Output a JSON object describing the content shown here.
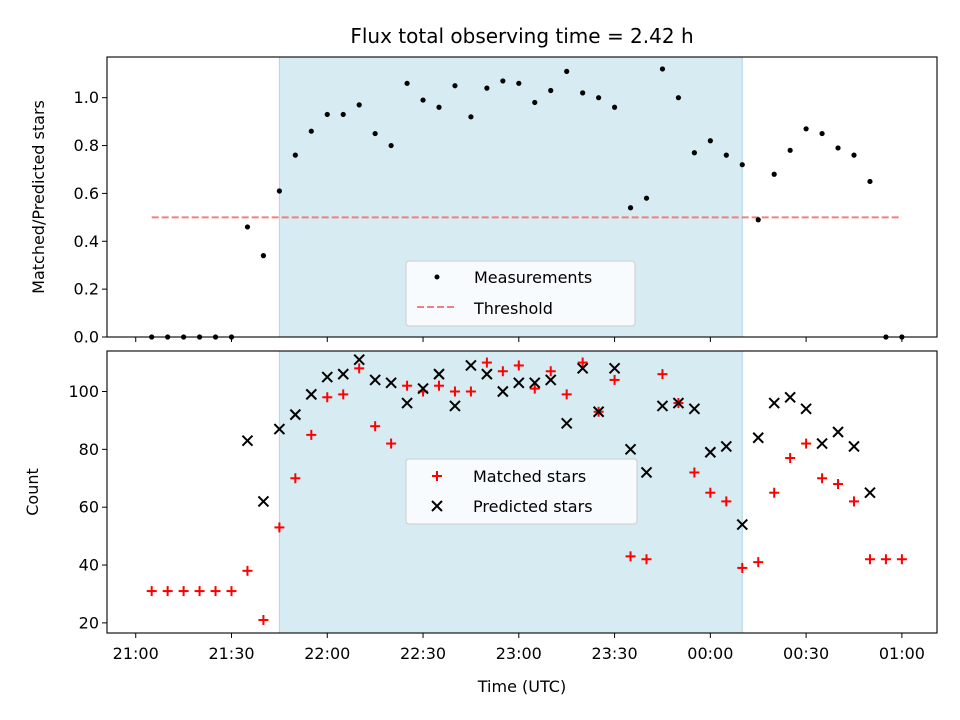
{
  "chart_data": [
    {
      "type": "scatter",
      "title": "Flux total observing time = 2.42 h",
      "xlabel": "",
      "ylabel": "Matched/Predicted stars",
      "xlim": [
        "20:51",
        "01:11"
      ],
      "ylim": [
        0,
        1.17
      ],
      "yticks": [
        0.0,
        0.2,
        0.4,
        0.6,
        0.8,
        1.0
      ],
      "yticklabels": [
        "0.0",
        "0.2",
        "0.4",
        "0.6",
        "0.8",
        "1.0"
      ],
      "shaded_span": {
        "start": "21:45",
        "end": "00:10",
        "color": "#add8e6"
      },
      "legend": {
        "position": "lower center",
        "entries": [
          "Measurements",
          "Threshold"
        ]
      },
      "series": [
        {
          "name": "Measurements",
          "marker": "dot",
          "color": "#000000",
          "points": [
            [
              "21:05",
              0.0
            ],
            [
              "21:10",
              0.0
            ],
            [
              "21:15",
              0.0
            ],
            [
              "21:20",
              0.0
            ],
            [
              "21:25",
              0.0
            ],
            [
              "21:30",
              0.0
            ],
            [
              "21:35",
              0.46
            ],
            [
              "21:40",
              0.34
            ],
            [
              "21:45",
              0.61
            ],
            [
              "21:50",
              0.76
            ],
            [
              "21:55",
              0.86
            ],
            [
              "22:00",
              0.93
            ],
            [
              "22:05",
              0.93
            ],
            [
              "22:10",
              0.97
            ],
            [
              "22:15",
              0.85
            ],
            [
              "22:20",
              0.8
            ],
            [
              "22:25",
              1.06
            ],
            [
              "22:30",
              0.99
            ],
            [
              "22:35",
              0.96
            ],
            [
              "22:40",
              1.05
            ],
            [
              "22:45",
              0.92
            ],
            [
              "22:50",
              1.04
            ],
            [
              "22:55",
              1.07
            ],
            [
              "23:00",
              1.06
            ],
            [
              "23:05",
              0.98
            ],
            [
              "23:10",
              1.03
            ],
            [
              "23:15",
              1.11
            ],
            [
              "23:20",
              1.02
            ],
            [
              "23:25",
              1.0
            ],
            [
              "23:30",
              0.96
            ],
            [
              "23:35",
              0.54
            ],
            [
              "23:40",
              0.58
            ],
            [
              "23:45",
              1.12
            ],
            [
              "23:50",
              1.0
            ],
            [
              "23:55",
              0.77
            ],
            [
              "00:00",
              0.82
            ],
            [
              "00:05",
              0.76
            ],
            [
              "00:10",
              0.72
            ],
            [
              "00:15",
              0.49
            ],
            [
              "00:20",
              0.68
            ],
            [
              "00:25",
              0.78
            ],
            [
              "00:30",
              0.87
            ],
            [
              "00:35",
              0.85
            ],
            [
              "00:40",
              0.79
            ],
            [
              "00:45",
              0.76
            ],
            [
              "00:50",
              0.65
            ],
            [
              "00:55",
              0.0
            ],
            [
              "01:00",
              0.0
            ]
          ]
        },
        {
          "name": "Threshold",
          "marker": "dashed-line",
          "color": "#f08080",
          "points": [
            [
              "21:05",
              0.5
            ],
            [
              "01:00",
              0.5
            ]
          ]
        }
      ]
    },
    {
      "type": "scatter",
      "title": "",
      "xlabel": "Time (UTC)",
      "ylabel": "Count",
      "xlim": [
        "20:51",
        "01:11"
      ],
      "ylim": [
        16.5,
        114
      ],
      "xticks": [
        "21:00",
        "21:30",
        "22:00",
        "22:30",
        "23:00",
        "23:30",
        "00:00",
        "00:30",
        "01:00"
      ],
      "yticks": [
        20,
        40,
        60,
        80,
        100
      ],
      "shaded_span": {
        "start": "21:45",
        "end": "00:10",
        "color": "#add8e6"
      },
      "legend": {
        "position": "center",
        "entries": [
          "Matched stars",
          "Predicted stars"
        ]
      },
      "series": [
        {
          "name": "Matched stars",
          "marker": "plus",
          "color": "#ff0000",
          "points": [
            [
              "21:05",
              31
            ],
            [
              "21:10",
              31
            ],
            [
              "21:15",
              31
            ],
            [
              "21:20",
              31
            ],
            [
              "21:25",
              31
            ],
            [
              "21:30",
              31
            ],
            [
              "21:35",
              38
            ],
            [
              "21:40",
              21
            ],
            [
              "21:45",
              53
            ],
            [
              "21:50",
              70
            ],
            [
              "21:55",
              85
            ],
            [
              "22:00",
              98
            ],
            [
              "22:05",
              99
            ],
            [
              "22:10",
              108
            ],
            [
              "22:15",
              88
            ],
            [
              "22:20",
              82
            ],
            [
              "22:25",
              102
            ],
            [
              "22:30",
              100
            ],
            [
              "22:35",
              102
            ],
            [
              "22:40",
              100
            ],
            [
              "22:45",
              100
            ],
            [
              "22:50",
              110
            ],
            [
              "22:55",
              107
            ],
            [
              "23:00",
              109
            ],
            [
              "23:05",
              101
            ],
            [
              "23:10",
              107
            ],
            [
              "23:15",
              99
            ],
            [
              "23:20",
              110
            ],
            [
              "23:25",
              93
            ],
            [
              "23:30",
              104
            ],
            [
              "23:35",
              43
            ],
            [
              "23:40",
              42
            ],
            [
              "23:45",
              106
            ],
            [
              "23:50",
              96
            ],
            [
              "23:55",
              72
            ],
            [
              "00:00",
              65
            ],
            [
              "00:05",
              62
            ],
            [
              "00:10",
              39
            ],
            [
              "00:15",
              41
            ],
            [
              "00:20",
              65
            ],
            [
              "00:25",
              77
            ],
            [
              "00:30",
              82
            ],
            [
              "00:35",
              70
            ],
            [
              "00:40",
              68
            ],
            [
              "00:45",
              62
            ],
            [
              "00:50",
              42
            ],
            [
              "00:55",
              42
            ],
            [
              "01:00",
              42
            ]
          ]
        },
        {
          "name": "Predicted stars",
          "marker": "x",
          "color": "#000000",
          "points": [
            [
              "21:35",
              83
            ],
            [
              "21:40",
              62
            ],
            [
              "21:45",
              87
            ],
            [
              "21:50",
              92
            ],
            [
              "21:55",
              99
            ],
            [
              "22:00",
              105
            ],
            [
              "22:05",
              106
            ],
            [
              "22:10",
              111
            ],
            [
              "22:15",
              104
            ],
            [
              "22:20",
              103
            ],
            [
              "22:25",
              96
            ],
            [
              "22:30",
              101
            ],
            [
              "22:35",
              106
            ],
            [
              "22:40",
              95
            ],
            [
              "22:45",
              109
            ],
            [
              "22:50",
              106
            ],
            [
              "22:55",
              100
            ],
            [
              "23:00",
              103
            ],
            [
              "23:05",
              103
            ],
            [
              "23:10",
              104
            ],
            [
              "23:15",
              89
            ],
            [
              "23:20",
              108
            ],
            [
              "23:25",
              93
            ],
            [
              "23:30",
              108
            ],
            [
              "23:35",
              80
            ],
            [
              "23:40",
              72
            ],
            [
              "23:45",
              95
            ],
            [
              "23:50",
              96
            ],
            [
              "23:55",
              94
            ],
            [
              "00:00",
              79
            ],
            [
              "00:05",
              81
            ],
            [
              "00:10",
              54
            ],
            [
              "00:15",
              84
            ],
            [
              "00:20",
              96
            ],
            [
              "00:25",
              98
            ],
            [
              "00:30",
              94
            ],
            [
              "00:35",
              82
            ],
            [
              "00:40",
              86
            ],
            [
              "00:45",
              81
            ],
            [
              "00:50",
              65
            ]
          ]
        }
      ]
    }
  ]
}
